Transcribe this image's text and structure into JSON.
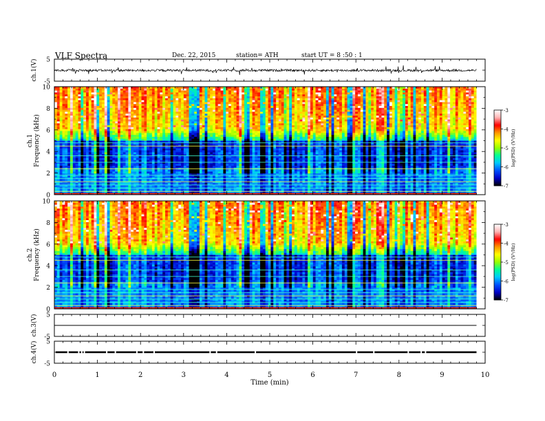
{
  "header": {
    "title": "VLF  Spectra",
    "date": "Dec. 22, 2015",
    "station": "station= ATH",
    "start": "start  UT  =   8  :50 : 1"
  },
  "chart_data": {
    "type": "heatmap",
    "xlabel": "Time (min)",
    "xlim": [
      0,
      10
    ],
    "x_ticks": [
      "0",
      "1",
      "2",
      "3",
      "4",
      "5",
      "6",
      "7",
      "8",
      "9",
      "10"
    ],
    "data_extent_min": 9.8,
    "panels": [
      {
        "id": "ch1-waveform",
        "kind": "waveform",
        "ylabel": "ch.1(V)",
        "ylim": [
          -5,
          5
        ],
        "y_ticks": [
          "5",
          "-5"
        ],
        "mean": -0.1,
        "amplitude": 0.5,
        "spikes": true,
        "color": "#000000"
      },
      {
        "id": "ch1-spectrogram",
        "kind": "spectrogram",
        "ylabel_lines": [
          "ch.1",
          "Frequency  (kHz)"
        ],
        "ylim": [
          0,
          10
        ],
        "y_ticks": [
          "0",
          "2",
          "4",
          "6",
          "8",
          "10"
        ]
      },
      {
        "id": "ch2-spectrogram",
        "kind": "spectrogram",
        "ylabel_lines": [
          "ch.2",
          "Frequency  (kHz)"
        ],
        "ylim": [
          0,
          10
        ],
        "y_ticks": [
          "0",
          "2",
          "4",
          "6",
          "8",
          "10"
        ]
      },
      {
        "id": "ch3-waveform",
        "kind": "waveform",
        "ylabel": "ch.3(V)",
        "ylim": [
          -5,
          5
        ],
        "y_ticks": [
          "5",
          "-5"
        ],
        "mean": 0,
        "amplitude": 0,
        "spikes": false,
        "color": "#000000"
      },
      {
        "id": "ch4-waveform",
        "kind": "waveform",
        "ylabel": "ch.4(V)",
        "ylim": [
          -5,
          5
        ],
        "y_ticks": [
          "5",
          "-5"
        ],
        "mean": 0,
        "amplitude": 0.4,
        "gaps": true,
        "color": "#000000"
      }
    ],
    "colorbar": {
      "label": "log(PSD) (V²/Hz)",
      "range": [
        -7,
        -3
      ],
      "ticks": [
        "-3",
        "-4",
        "-5",
        "-6",
        "-7"
      ],
      "colors": [
        "#000000",
        "#0000c8",
        "#0050ff",
        "#00c8ff",
        "#00ff96",
        "#96ff00",
        "#ffff00",
        "#ff9600",
        "#ff0000",
        "#ffb4b4",
        "#ffffff"
      ]
    },
    "features": {
      "horizontal_lines_khz": [
        0.3,
        0.6,
        0.9,
        1.2,
        1.5,
        1.8,
        2.4,
        3.0,
        3.6,
        4.5,
        4.8
      ],
      "intense_band_khz": [
        6,
        10
      ],
      "quiet_band_khz": [
        2.5,
        5
      ]
    }
  }
}
